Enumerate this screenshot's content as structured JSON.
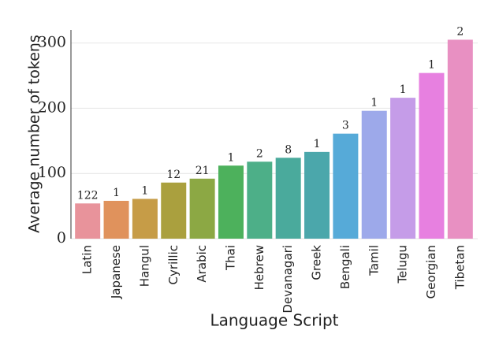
{
  "chart_data": {
    "type": "bar",
    "x_label": "Language Script",
    "y_label": "Average number of tokens",
    "categories": [
      "Latin",
      "Japanese",
      "Hangul",
      "Cyrillic",
      "Arabic",
      "Thai",
      "Hebrew",
      "Devanagari",
      "Greek",
      "Bengali",
      "Tamil",
      "Telugu",
      "Georgian",
      "Tibetan"
    ],
    "values": [
      54,
      58,
      61,
      86,
      92,
      112,
      118,
      124,
      133,
      161,
      196,
      216,
      254,
      305
    ],
    "bar_labels": [
      "122",
      "1",
      "1",
      "12",
      "21",
      "1",
      "2",
      "8",
      "1",
      "3",
      "1",
      "1",
      "1",
      "2"
    ],
    "colors": [
      "#e8939b",
      "#e0925c",
      "#c69c47",
      "#aaa03e",
      "#8ca844",
      "#4db15c",
      "#4daf88",
      "#4aaa9c",
      "#4ba7ab",
      "#56aad8",
      "#9da9ea",
      "#c59ce8",
      "#e780e0",
      "#e890c2"
    ],
    "ylim": [
      0,
      320
    ],
    "yticks": [
      0,
      100,
      200,
      300
    ],
    "grid": true
  }
}
